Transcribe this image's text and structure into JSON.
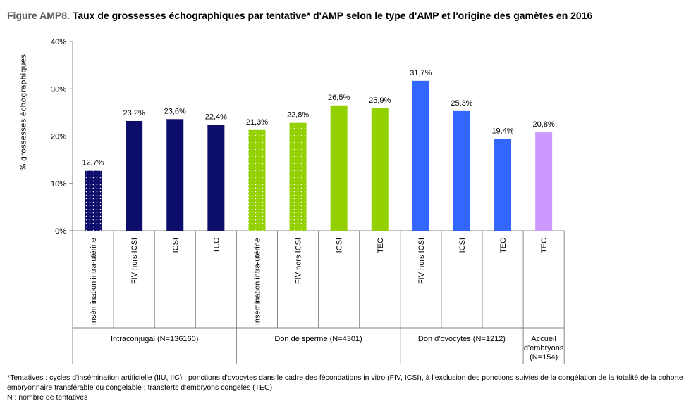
{
  "figure": {
    "prefix": "Figure AMP8.",
    "title": "Taux de grossesses échographiques par tentative* d'AMP selon le type d'AMP et l'origine des gamètes en 2016"
  },
  "chart_data": {
    "type": "bar",
    "ylabel": "% grossesses échographiques",
    "ylim": [
      0,
      40
    ],
    "yticks": [
      "0%",
      "10%",
      "20%",
      "30%",
      "40%"
    ],
    "grid": false,
    "legend": "none",
    "colors": {
      "intraconjugal": "#0d0d6b",
      "sperm": "#92d000",
      "oocyte": "#3366ff",
      "embryo": "#cc99ff",
      "dots": "#ffffff"
    },
    "bars": [
      {
        "category": "Insémination intra-utérine",
        "value": 12.7,
        "label": "12,7%",
        "group": 0,
        "color": "intraconjugal",
        "dotted": true
      },
      {
        "category": "FIV hors ICSI",
        "value": 23.2,
        "label": "23,2%",
        "group": 0,
        "color": "intraconjugal",
        "dotted": false
      },
      {
        "category": "ICSI",
        "value": 23.6,
        "label": "23,6%",
        "group": 0,
        "color": "intraconjugal",
        "dotted": false
      },
      {
        "category": "TEC",
        "value": 22.4,
        "label": "22,4%",
        "group": 0,
        "color": "intraconjugal",
        "dotted": false
      },
      {
        "category": "Insémination intra-utérine",
        "value": 21.3,
        "label": "21,3%",
        "group": 1,
        "color": "sperm",
        "dotted": true
      },
      {
        "category": "FIV hors ICSI",
        "value": 22.8,
        "label": "22,8%",
        "group": 1,
        "color": "sperm",
        "dotted": true
      },
      {
        "category": "ICSI",
        "value": 26.5,
        "label": "26,5%",
        "group": 1,
        "color": "sperm",
        "dotted": false
      },
      {
        "category": "TEC",
        "value": 25.9,
        "label": "25,9%",
        "group": 1,
        "color": "sperm",
        "dotted": false
      },
      {
        "category": "FIV hors ICSI",
        "value": 31.7,
        "label": "31,7%",
        "group": 2,
        "color": "oocyte",
        "dotted": false
      },
      {
        "category": "ICSI",
        "value": 25.3,
        "label": "25,3%",
        "group": 2,
        "color": "oocyte",
        "dotted": false
      },
      {
        "category": "TEC",
        "value": 19.4,
        "label": "19,4%",
        "group": 2,
        "color": "oocyte",
        "dotted": false
      },
      {
        "category": "TEC",
        "value": 20.8,
        "label": "20,8%",
        "group": 3,
        "color": "embryo",
        "dotted": false
      }
    ],
    "groups": [
      {
        "lines": [
          "Intraconjugal (N=136160)"
        ]
      },
      {
        "lines": [
          "Don de sperme (N=4301)"
        ]
      },
      {
        "lines": [
          "Don d'ovocytes (N=1212)"
        ]
      },
      {
        "lines": [
          "Accueil",
          "d'embryons",
          "(N=154)"
        ]
      }
    ]
  },
  "footnote": {
    "line1": "*Tentatives : cycles d'insémination artificielle (IIU, IIC) ; ponctions d'ovocytes dans le cadre des fécondations in vitro (FIV, ICSI), à l'exclusion des ponctions suivies de la congélation de la totalité de la cohorte embryonnaire transférable ou congelable ; transferts d'embryons congelés (TEC)",
    "line2": "N : nombre de tentatives"
  }
}
